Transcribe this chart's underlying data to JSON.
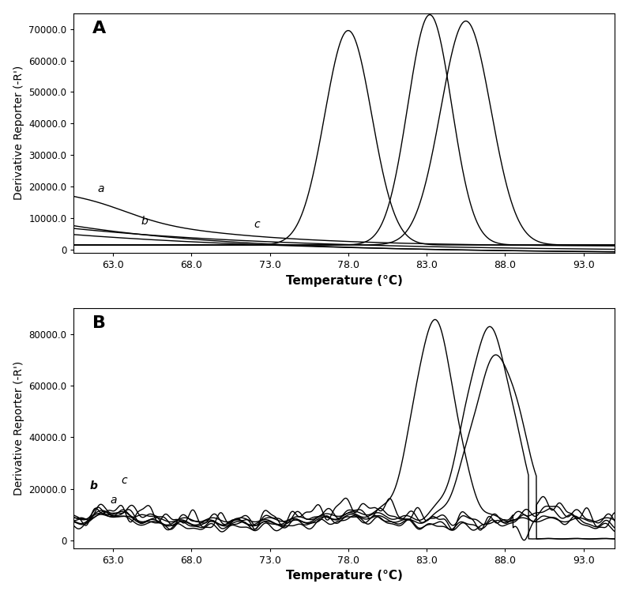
{
  "panel_A": {
    "label": "A",
    "ylabel": "Derivative Reporter (-R')",
    "xlabel": "Temperature (°C)",
    "xlim": [
      60.5,
      95
    ],
    "ylim": [
      -1000,
      75000
    ],
    "yticks": [
      0,
      10000,
      20000,
      30000,
      40000,
      50000,
      60000,
      70000
    ],
    "ytick_labels": [
      "0",
      "10000.0",
      "20000.0",
      "30000.0",
      "40000.0",
      "50000.0",
      "60000.0",
      "70000.0"
    ],
    "xticks": [
      63.0,
      68.0,
      73.0,
      78.0,
      83.0,
      88.0,
      93.0
    ]
  },
  "panel_B": {
    "label": "B",
    "ylabel": "Derivative Reporter (-R')",
    "xlabel": "Temperature (°C)",
    "xlim": [
      60.5,
      95
    ],
    "ylim": [
      -3000,
      90000
    ],
    "yticks": [
      0,
      20000,
      40000,
      60000,
      80000
    ],
    "ytick_labels": [
      "0",
      "20000.0",
      "40000.0",
      "60000.0",
      "80000.0"
    ],
    "xticks": [
      63.0,
      68.0,
      73.0,
      78.0,
      83.0,
      88.0,
      93.0
    ]
  },
  "background_color": "#ffffff",
  "line_color": "#000000",
  "line_width": 1.0
}
